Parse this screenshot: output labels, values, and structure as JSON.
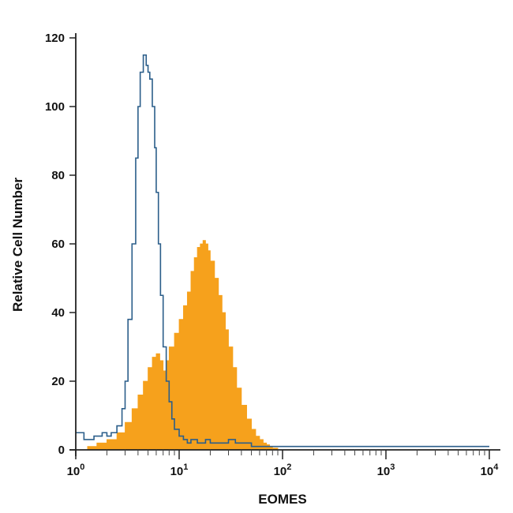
{
  "chart_data": {
    "type": "area",
    "title": "",
    "xlabel": "EOMES",
    "ylabel": "Relative Cell Number",
    "xscale": "log",
    "xlim": [
      1,
      10000
    ],
    "ylim": [
      0,
      120
    ],
    "grid": false,
    "legend": "none",
    "x_ticks": [
      {
        "value": 1,
        "base": "10",
        "exp": "0"
      },
      {
        "value": 10,
        "base": "10",
        "exp": "1"
      },
      {
        "value": 100,
        "base": "10",
        "exp": "2"
      },
      {
        "value": 1000,
        "base": "10",
        "exp": "3"
      },
      {
        "value": 10000,
        "base": "10",
        "exp": "4"
      }
    ],
    "y_ticks": [
      "0",
      "20",
      "40",
      "60",
      "80",
      "100",
      "120"
    ],
    "series": [
      {
        "style": "filled",
        "color": "#f6a11c",
        "x": [
          1.0,
          1.3,
          1.6,
          2.0,
          2.5,
          3.0,
          3.5,
          4.0,
          4.5,
          5.0,
          5.5,
          6.0,
          6.5,
          7.0,
          7.5,
          8.0,
          9.0,
          10.0,
          11.0,
          12.0,
          13.0,
          14.0,
          15.0,
          16.0,
          17.0,
          18.0,
          19.0,
          20.0,
          22.0,
          24.0,
          26.0,
          28.0,
          30.0,
          33.0,
          36.0,
          40.0,
          45.0,
          50.0,
          55.0,
          60.0,
          65.0,
          70.0,
          75.0,
          80.0,
          90.0,
          100.0,
          200.0,
          500.0,
          1000.0,
          5000.0,
          10000.0
        ],
        "y": [
          0,
          1,
          2,
          3,
          5,
          8,
          12,
          16,
          20,
          24,
          27,
          28,
          26,
          23,
          26,
          30,
          34,
          38,
          42,
          46,
          52,
          56,
          59,
          60,
          61,
          60,
          58,
          55,
          50,
          45,
          40,
          35,
          30,
          24,
          18,
          13,
          9,
          6,
          4,
          3,
          2,
          1.5,
          1,
          0.5,
          0,
          0,
          0,
          0,
          0,
          0,
          0
        ]
      },
      {
        "style": "outline",
        "color": "#2b5e8a",
        "x": [
          1.0,
          1.2,
          1.5,
          1.8,
          2.0,
          2.2,
          2.5,
          2.8,
          3.0,
          3.2,
          3.5,
          3.8,
          4.0,
          4.2,
          4.5,
          4.8,
          5.0,
          5.2,
          5.5,
          5.8,
          6.0,
          6.3,
          6.6,
          7.0,
          7.5,
          8.0,
          8.5,
          9.0,
          10.0,
          11.0,
          12.0,
          13.0,
          15.0,
          18.0,
          20.0,
          25.0,
          30.0,
          35.0,
          40.0,
          50.0,
          100.0,
          1000.0,
          10000.0
        ],
        "y": [
          5,
          3,
          4,
          5,
          4,
          5,
          7,
          12,
          20,
          38,
          60,
          85,
          100,
          110,
          115,
          112,
          110,
          108,
          100,
          88,
          75,
          60,
          45,
          30,
          20,
          14,
          9,
          6,
          4,
          3,
          2,
          3,
          2,
          3,
          2,
          2,
          3,
          2,
          2,
          1,
          1,
          1,
          1
        ]
      }
    ]
  }
}
